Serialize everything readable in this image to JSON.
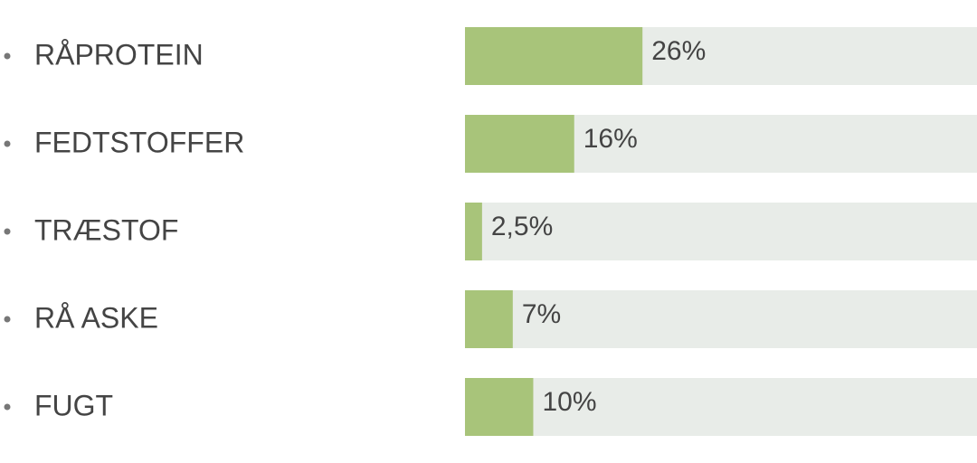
{
  "chart_data": {
    "type": "bar",
    "orientation": "horizontal",
    "categories": [
      "RÅPROTEIN",
      "FEDTSTOFFER",
      "TRÆSTOF",
      "RÅ ASKE",
      "FUGT"
    ],
    "values": [
      26,
      16,
      2.5,
      7,
      10
    ],
    "value_labels": [
      "26%",
      "16%",
      "2,5%",
      "7%",
      "10%"
    ],
    "xlim": [
      0,
      75
    ],
    "color": "#a8c47a",
    "track_color": "#e8ece8"
  }
}
